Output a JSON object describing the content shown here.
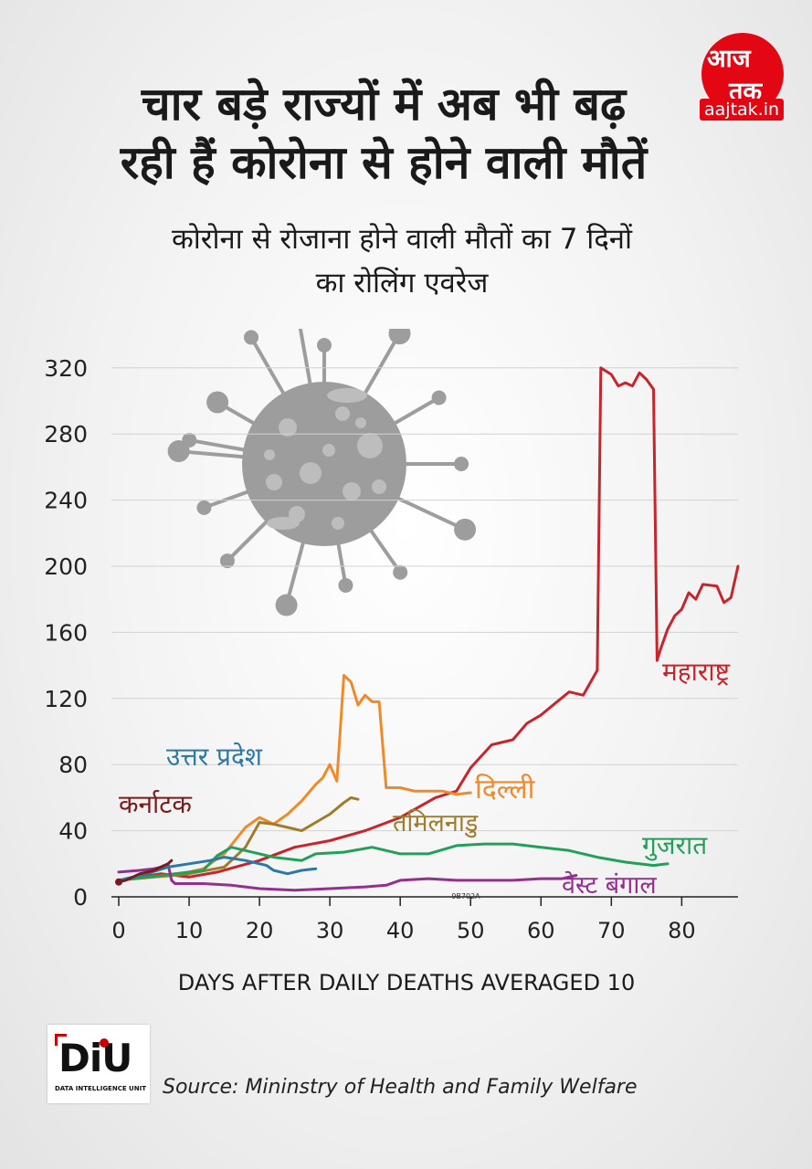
{
  "header": {
    "title_line1": "चार बड़े राज्यों में अब भी बढ़",
    "title_line2": "रही हैं कोरोना से होने वाली मौतें",
    "subtitle_line1": "कोरोना से रोजाना होने वाली मौतों का 7 दिनों",
    "subtitle_line2": "का रोलिंग एवरेज"
  },
  "logo": {
    "word1": "आज",
    "word2": "तक",
    "site": "aajtak.in",
    "color": "#e30613"
  },
  "chart_data": {
    "type": "line",
    "title": "कोरोना से रोजाना होने वाली मौतों का 7 दिनों का रोलिंग एवरेज",
    "xlabel": "DAYS AFTER DAILY DEATHS AVERAGED 10",
    "ylabel": "",
    "xlim": [
      0,
      88
    ],
    "ylim": [
      0,
      330
    ],
    "x_ticks": [
      0,
      10,
      20,
      30,
      40,
      50,
      60,
      70,
      80
    ],
    "y_ticks": [
      0,
      40,
      80,
      120,
      160,
      200,
      240,
      280,
      320
    ],
    "grid": "horizontal",
    "watermark": "9B702A",
    "series": [
      {
        "name": "महाराष्ट्र",
        "color": "#c8242b",
        "label_color": "#c8242b",
        "points": [
          [
            0,
            10
          ],
          [
            3,
            12
          ],
          [
            6,
            14
          ],
          [
            10,
            12
          ],
          [
            14,
            15
          ],
          [
            20,
            22
          ],
          [
            25,
            30
          ],
          [
            30,
            34
          ],
          [
            35,
            40
          ],
          [
            40,
            48
          ],
          [
            45,
            60
          ],
          [
            48,
            64
          ],
          [
            50,
            78
          ],
          [
            53,
            92
          ],
          [
            56,
            95
          ],
          [
            58,
            105
          ],
          [
            60,
            110
          ],
          [
            62,
            117
          ],
          [
            64,
            124
          ],
          [
            66,
            122
          ],
          [
            68,
            137
          ],
          [
            68.5,
            320
          ],
          [
            70,
            316
          ],
          [
            71,
            309
          ],
          [
            72,
            311
          ],
          [
            73,
            309
          ],
          [
            74,
            317
          ],
          [
            75,
            313
          ],
          [
            76,
            307
          ],
          [
            76.5,
            143
          ],
          [
            77,
            150
          ],
          [
            78,
            162
          ],
          [
            79,
            170
          ],
          [
            80,
            174
          ],
          [
            81,
            184
          ],
          [
            82,
            180
          ],
          [
            83,
            189
          ],
          [
            85,
            188
          ],
          [
            86,
            178
          ],
          [
            87,
            181
          ],
          [
            88,
            200
          ]
        ]
      },
      {
        "name": "दिल्ली",
        "color": "#ef8a2c",
        "label_color": "#ef8a2c",
        "points": [
          [
            0,
            10
          ],
          [
            5,
            12
          ],
          [
            8,
            13
          ],
          [
            12,
            17
          ],
          [
            15,
            26
          ],
          [
            18,
            42
          ],
          [
            20,
            48
          ],
          [
            22,
            44
          ],
          [
            24,
            50
          ],
          [
            26,
            58
          ],
          [
            28,
            68
          ],
          [
            29,
            72
          ],
          [
            30,
            80
          ],
          [
            31,
            70
          ],
          [
            32,
            134
          ],
          [
            33,
            130
          ],
          [
            34,
            116
          ],
          [
            35,
            122
          ],
          [
            36,
            118
          ],
          [
            37,
            118
          ],
          [
            38,
            66
          ],
          [
            40,
            66
          ],
          [
            42,
            64
          ],
          [
            44,
            64
          ],
          [
            46,
            64
          ],
          [
            48,
            62
          ],
          [
            50,
            63
          ]
        ]
      },
      {
        "name": "तमिलनाडु",
        "color": "#9e7c2c",
        "label_color": "#9e7c2c",
        "points": [
          [
            0,
            10
          ],
          [
            5,
            12
          ],
          [
            10,
            14
          ],
          [
            15,
            18
          ],
          [
            18,
            30
          ],
          [
            20,
            45
          ],
          [
            22,
            44
          ],
          [
            24,
            42
          ],
          [
            26,
            40
          ],
          [
            28,
            45
          ],
          [
            30,
            50
          ],
          [
            32,
            57
          ],
          [
            33,
            60
          ],
          [
            34,
            59
          ]
        ]
      },
      {
        "name": "गुजरात",
        "color": "#22a05a",
        "label_color": "#22a05a",
        "points": [
          [
            0,
            10
          ],
          [
            4,
            12
          ],
          [
            8,
            14
          ],
          [
            12,
            16
          ],
          [
            14,
            25
          ],
          [
            16,
            30
          ],
          [
            18,
            28
          ],
          [
            22,
            24
          ],
          [
            26,
            22
          ],
          [
            28,
            26
          ],
          [
            32,
            27
          ],
          [
            36,
            30
          ],
          [
            40,
            26
          ],
          [
            44,
            26
          ],
          [
            48,
            31
          ],
          [
            52,
            32
          ],
          [
            56,
            32
          ],
          [
            60,
            30
          ],
          [
            64,
            28
          ],
          [
            68,
            24
          ],
          [
            72,
            21
          ],
          [
            76,
            19
          ],
          [
            78,
            20
          ]
        ]
      },
      {
        "name": "वेस्ट बंगाल",
        "color": "#93308f",
        "label_color": "#93308f",
        "points": [
          [
            0,
            15
          ],
          [
            3,
            16
          ],
          [
            5,
            17
          ],
          [
            6,
            18
          ],
          [
            7,
            20
          ],
          [
            7.5,
            10
          ],
          [
            8,
            8
          ],
          [
            12,
            8
          ],
          [
            16,
            7
          ],
          [
            20,
            5
          ],
          [
            25,
            4
          ],
          [
            30,
            5
          ],
          [
            35,
            6
          ],
          [
            38,
            7
          ],
          [
            40,
            10
          ],
          [
            44,
            11
          ],
          [
            48,
            10
          ],
          [
            52,
            10
          ],
          [
            56,
            10
          ],
          [
            60,
            11
          ],
          [
            63,
            11
          ],
          [
            65,
            13
          ]
        ]
      },
      {
        "name": "उत्तर प्रदेश",
        "color": "#2a79a6",
        "label_color": "#2a79a6",
        "points": [
          [
            0,
            10
          ],
          [
            4,
            14
          ],
          [
            7,
            18
          ],
          [
            10,
            20
          ],
          [
            13,
            22
          ],
          [
            15,
            24
          ],
          [
            18,
            22
          ],
          [
            21,
            19
          ],
          [
            22,
            16
          ],
          [
            24,
            14
          ],
          [
            26,
            16
          ],
          [
            28,
            17
          ]
        ]
      },
      {
        "name": "कर्नाटक",
        "color": "#7a1a1c",
        "label_color": "#7a1a1c",
        "points": [
          [
            0,
            9
          ],
          [
            1,
            10
          ],
          [
            2,
            12
          ],
          [
            3,
            14
          ],
          [
            4,
            15
          ],
          [
            5,
            16
          ],
          [
            6,
            18
          ],
          [
            7,
            20
          ],
          [
            7.5,
            22
          ]
        ]
      }
    ]
  },
  "footer": {
    "diu_mark": "DiU",
    "diu_sub": "DATA INTELLIGENCE UNIT",
    "source": "Source: Mininstry of Health and Family Welfare"
  }
}
